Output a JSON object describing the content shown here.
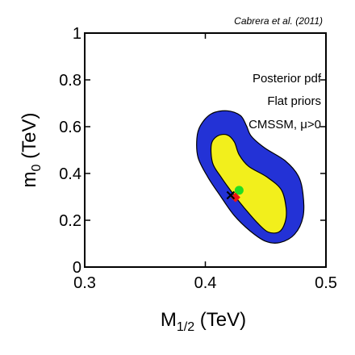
{
  "chart_data": {
    "type": "contour",
    "credit": "Cabrera et al. (2011)",
    "annotations": [
      "Posterior pdf",
      "Flat priors",
      "CMSSM, μ>0"
    ],
    "xlabel": {
      "main": "M",
      "sub": "1/2",
      "unit": " (TeV)"
    },
    "ylabel": {
      "main": "m",
      "sub": "0",
      "unit": " (TeV)"
    },
    "xlim": [
      0.3,
      0.5
    ],
    "ylim": [
      0,
      1
    ],
    "x_ticks": [
      0.3,
      0.4,
      0.5
    ],
    "x_tick_labels": [
      "0.3",
      "0.4",
      "0.5"
    ],
    "y_ticks": [
      0,
      0.2,
      0.4,
      0.6,
      0.8,
      1
    ],
    "y_tick_labels": [
      "0",
      "0.2",
      "0.4",
      "0.6",
      "0.8",
      "1"
    ],
    "regions": [
      {
        "level": "outer",
        "color": "#2332d6",
        "points": [
          [
            0.394,
            0.468
          ],
          [
            0.393,
            0.55
          ],
          [
            0.396,
            0.605
          ],
          [
            0.405,
            0.655
          ],
          [
            0.418,
            0.668
          ],
          [
            0.429,
            0.648
          ],
          [
            0.434,
            0.605
          ],
          [
            0.438,
            0.56
          ],
          [
            0.449,
            0.51
          ],
          [
            0.466,
            0.455
          ],
          [
            0.477,
            0.39
          ],
          [
            0.481,
            0.31
          ],
          [
            0.481,
            0.215
          ],
          [
            0.474,
            0.14
          ],
          [
            0.462,
            0.105
          ],
          [
            0.45,
            0.11
          ],
          [
            0.437,
            0.155
          ],
          [
            0.424,
            0.22
          ],
          [
            0.413,
            0.3
          ],
          [
            0.402,
            0.385
          ]
        ]
      },
      {
        "level": "inner",
        "color": "#f2ef1c",
        "points": [
          [
            0.406,
            0.445
          ],
          [
            0.405,
            0.525
          ],
          [
            0.41,
            0.56
          ],
          [
            0.418,
            0.565
          ],
          [
            0.424,
            0.535
          ],
          [
            0.428,
            0.48
          ],
          [
            0.436,
            0.43
          ],
          [
            0.451,
            0.385
          ],
          [
            0.463,
            0.33
          ],
          [
            0.467,
            0.25
          ],
          [
            0.466,
            0.19
          ],
          [
            0.461,
            0.15
          ],
          [
            0.452,
            0.15
          ],
          [
            0.443,
            0.19
          ],
          [
            0.432,
            0.255
          ],
          [
            0.422,
            0.32
          ],
          [
            0.413,
            0.385
          ]
        ]
      }
    ],
    "markers": [
      {
        "kind": "mean",
        "shape": "circle",
        "color": "#22dd22",
        "x": 0.428,
        "y": 0.328
      },
      {
        "kind": "best-fit",
        "shape": "diamond",
        "color": "#ee1111",
        "x": 0.425,
        "y": 0.298
      },
      {
        "kind": "reference",
        "shape": "cross",
        "color": "#000000",
        "x": 0.421,
        "y": 0.307
      }
    ]
  }
}
